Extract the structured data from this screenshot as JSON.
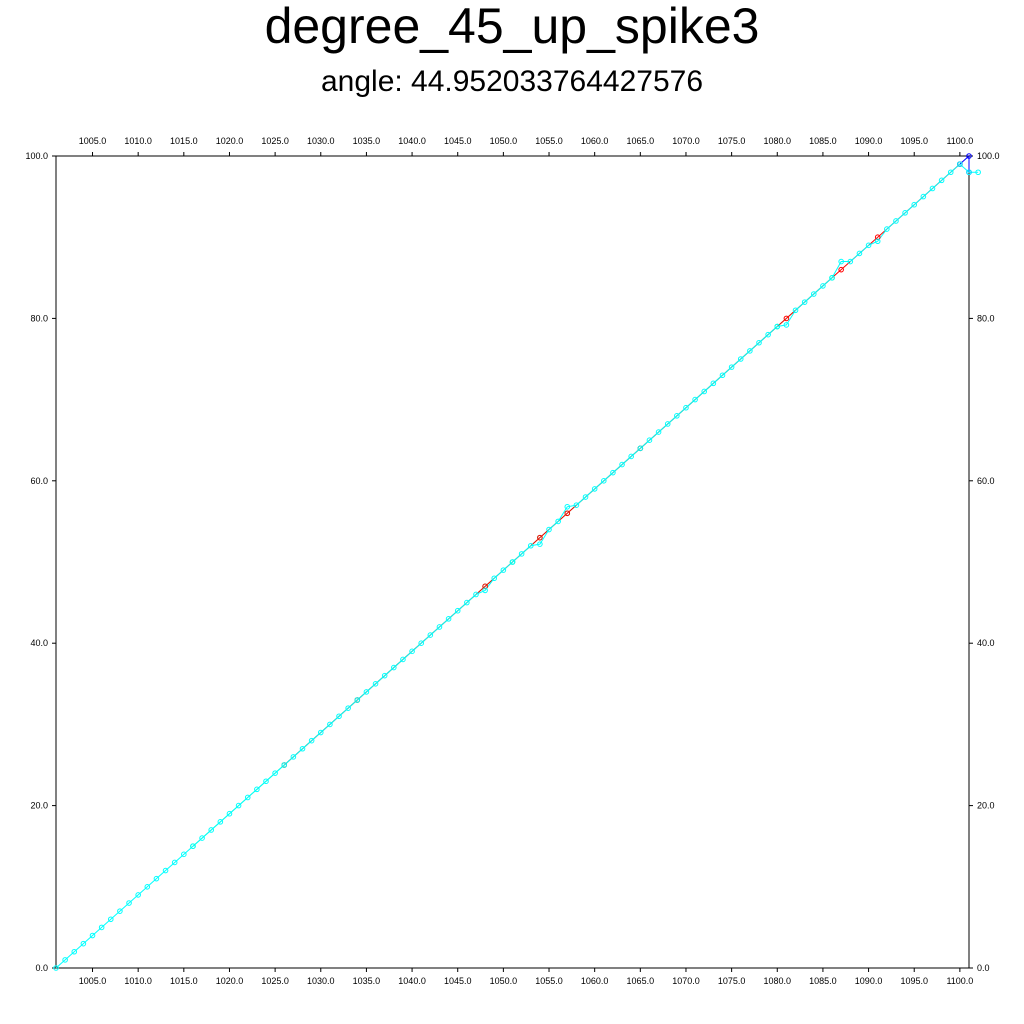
{
  "chart_data": {
    "type": "line",
    "title": "degree_45_up_spike3",
    "subtitle": "angle: 44.952033764427576",
    "xlim": [
      1001.0,
      1101.0
    ],
    "ylim": [
      0.0,
      100.0
    ],
    "grid": false,
    "x_ticks": [
      "1005.0",
      "1010.0",
      "1015.0",
      "1020.0",
      "1025.0",
      "1030.0",
      "1035.0",
      "1040.0",
      "1045.0",
      "1050.0",
      "1055.0",
      "1060.0",
      "1065.0",
      "1070.0",
      "1075.0",
      "1080.0",
      "1085.0",
      "1090.0",
      "1095.0",
      "1100.0"
    ],
    "y_ticks": [
      "0.0",
      "20.0",
      "40.0",
      "60.0",
      "80.0",
      "100.0"
    ],
    "series": [
      {
        "color": "#00ffff",
        "x": [
          1001,
          1102
        ],
        "y": [
          0,
          100
        ],
        "markers_every": 1,
        "deviations": [
          [
            1048,
            46.5
          ],
          [
            1054,
            52.2
          ],
          [
            1057,
            56.8
          ],
          [
            1081,
            79.2
          ],
          [
            1087,
            87
          ],
          [
            1091,
            89.5
          ],
          [
            1101,
            98
          ],
          [
            1102,
            98
          ]
        ]
      },
      {
        "color": "#00ff7f",
        "x": [
          1016,
          1026,
          1034,
          1048,
          1051,
          1054,
          1057,
          1065,
          1080,
          1086
        ],
        "y": [
          15,
          25,
          33,
          47,
          50,
          53,
          56,
          64,
          79,
          85
        ]
      },
      {
        "color": "#ff0000",
        "x": [
          1026,
          1034,
          1048,
          1054,
          1057,
          1065,
          1081,
          1087,
          1091,
          1100
        ],
        "y": [
          25,
          33,
          47,
          53,
          56,
          64,
          80,
          86,
          90,
          99
        ]
      },
      {
        "color": "#0000ff",
        "x": [
          1100,
          1101,
          1101
        ],
        "y": [
          99,
          100,
          98
        ]
      }
    ]
  }
}
